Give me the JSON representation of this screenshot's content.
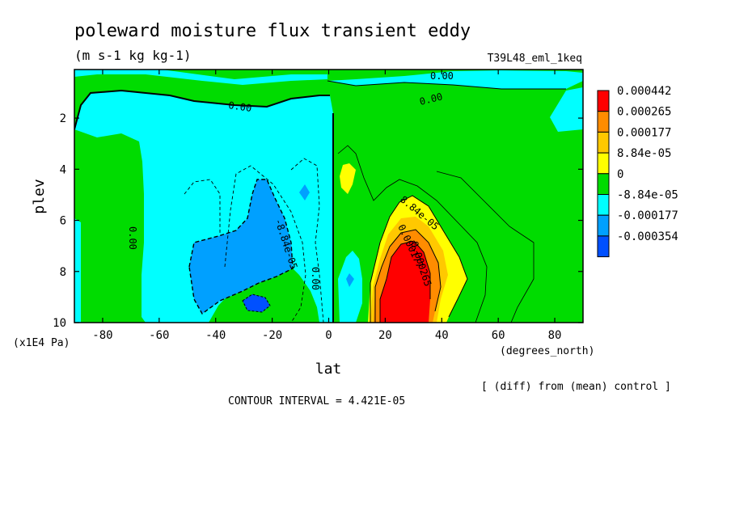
{
  "chart_data": {
    "type": "contour",
    "title": "poleward moisture flux transient eddy",
    "subtitle": "(m s-1 kg kg-1)",
    "run_label": "T39L48_eml_1keq",
    "xlabel": "lat",
    "x_units": "(degrees_north)",
    "ylabel": "plev",
    "y_units": "(x1E4 Pa)",
    "x_ticks": [
      "-80",
      "-60",
      "-40",
      "-20",
      "0",
      "20",
      "40",
      "60",
      "80"
    ],
    "x_tick_values": [
      -80,
      -60,
      -40,
      -20,
      0,
      20,
      40,
      60,
      80
    ],
    "y_ticks": [
      "2",
      "4",
      "6",
      "8",
      "10"
    ],
    "y_tick_values": [
      2,
      4,
      6,
      8,
      10
    ],
    "xlim": [
      -90,
      90
    ],
    "ylim": [
      0.1,
      10
    ],
    "y_inverted": true,
    "note": "[ (diff) from (mean) control ]",
    "contour_interval": "CONTOUR INTERVAL = 4.421E-05",
    "legend": [
      {
        "label": "0.000442",
        "color": "#ff0000"
      },
      {
        "label": "0.000265",
        "color": "#ff8c00"
      },
      {
        "label": "0.000177",
        "color": "#ffc800"
      },
      {
        "label": "8.84e-05",
        "color": "#ffff00"
      },
      {
        "label": "0",
        "color": "#00dc00"
      },
      {
        "label": "-8.84e-05",
        "color": "#00ffff"
      },
      {
        "label": "-0.000177",
        "color": "#00a0ff"
      },
      {
        "label": "-0.000354",
        "color": "#0050ff"
      }
    ],
    "contour_labels": [
      "0.00",
      "0.00",
      "0.00",
      "0.00",
      "0.00",
      "-8.84e-05",
      "8.84e-05",
      "0.000177",
      "0.000265"
    ]
  }
}
